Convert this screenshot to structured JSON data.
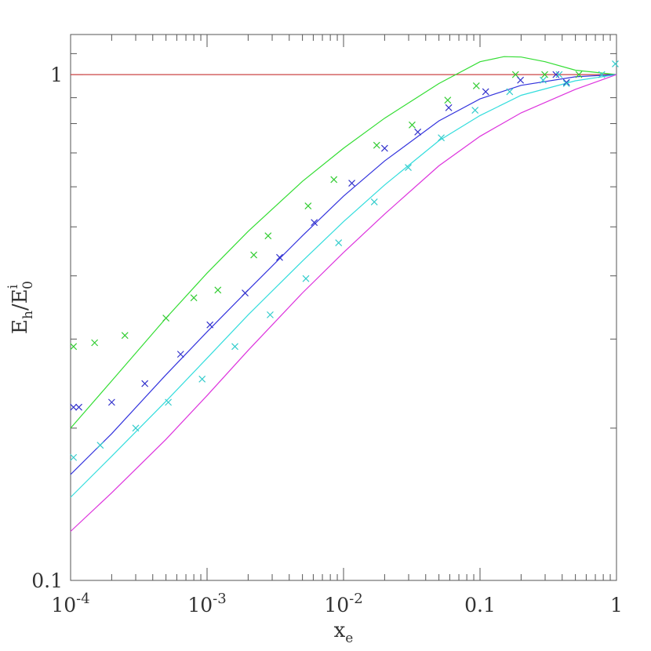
{
  "chart_data": {
    "type": "line",
    "xlabel": {
      "main": "x",
      "sub": "e"
    },
    "ylabel": {
      "main": "E",
      "sub": "h",
      "slash": "/",
      "main2": "E",
      "sup2": "i",
      "sub2": "0"
    },
    "xscale": "log",
    "yscale": "log",
    "xlim": [
      0.0001,
      1
    ],
    "ylim": [
      0.1,
      1.2
    ],
    "x_ticks": [
      {
        "value": 0.0001,
        "base": "10",
        "exp": "-4"
      },
      {
        "value": 0.001,
        "base": "10",
        "exp": "-3"
      },
      {
        "value": 0.01,
        "base": "10",
        "exp": "-2"
      },
      {
        "value": 0.1,
        "text": "0.1"
      },
      {
        "value": 1,
        "text": "1"
      }
    ],
    "y_ticks": [
      {
        "value": 0.1,
        "text": "0.1"
      },
      {
        "value": 1,
        "text": "1"
      }
    ],
    "grid": false,
    "legend": "none",
    "series": [
      {
        "kind": "line",
        "color": "#cc4444",
        "points": [
          [
            0.0001,
            1.0
          ],
          [
            1,
            1.0
          ]
        ]
      },
      {
        "kind": "line",
        "color": "#33dd33",
        "points": [
          [
            0.0001,
            0.2
          ],
          [
            0.0002,
            0.248
          ],
          [
            0.0005,
            0.33
          ],
          [
            0.001,
            0.405
          ],
          [
            0.002,
            0.49
          ],
          [
            0.005,
            0.615
          ],
          [
            0.01,
            0.715
          ],
          [
            0.02,
            0.82
          ],
          [
            0.05,
            0.96
          ],
          [
            0.1,
            1.06
          ],
          [
            0.15,
            1.085
          ],
          [
            0.2,
            1.083
          ],
          [
            0.3,
            1.06
          ],
          [
            0.5,
            1.02
          ],
          [
            1,
            1.0
          ]
        ]
      },
      {
        "kind": "line",
        "color": "#3333dd",
        "points": [
          [
            0.0001,
            0.162
          ],
          [
            0.0002,
            0.195
          ],
          [
            0.0005,
            0.255
          ],
          [
            0.001,
            0.31
          ],
          [
            0.002,
            0.375
          ],
          [
            0.005,
            0.48
          ],
          [
            0.01,
            0.575
          ],
          [
            0.02,
            0.675
          ],
          [
            0.05,
            0.81
          ],
          [
            0.1,
            0.895
          ],
          [
            0.2,
            0.952
          ],
          [
            0.5,
            0.99
          ],
          [
            1,
            1.0
          ]
        ]
      },
      {
        "kind": "line",
        "color": "#33dddd",
        "points": [
          [
            0.0001,
            0.146
          ],
          [
            0.0002,
            0.176
          ],
          [
            0.0005,
            0.226
          ],
          [
            0.001,
            0.275
          ],
          [
            0.002,
            0.335
          ],
          [
            0.005,
            0.428
          ],
          [
            0.01,
            0.512
          ],
          [
            0.02,
            0.605
          ],
          [
            0.05,
            0.74
          ],
          [
            0.1,
            0.83
          ],
          [
            0.2,
            0.91
          ],
          [
            0.5,
            0.972
          ],
          [
            1,
            1.0
          ]
        ]
      },
      {
        "kind": "line",
        "color": "#dd33dd",
        "points": [
          [
            0.0001,
            0.125
          ],
          [
            0.0002,
            0.149
          ],
          [
            0.0005,
            0.19
          ],
          [
            0.001,
            0.232
          ],
          [
            0.002,
            0.285
          ],
          [
            0.005,
            0.37
          ],
          [
            0.01,
            0.445
          ],
          [
            0.02,
            0.53
          ],
          [
            0.05,
            0.66
          ],
          [
            0.1,
            0.755
          ],
          [
            0.2,
            0.84
          ],
          [
            0.5,
            0.935
          ],
          [
            1,
            1.0
          ]
        ]
      },
      {
        "kind": "markers",
        "color": "#33cc33",
        "points": [
          [
            0.000105,
            0.29
          ],
          [
            0.00015,
            0.295
          ],
          [
            0.00025,
            0.305
          ],
          [
            0.0005,
            0.33
          ],
          [
            0.0008,
            0.362
          ],
          [
            0.0012,
            0.375
          ],
          [
            0.0022,
            0.44
          ],
          [
            0.0028,
            0.48
          ],
          [
            0.0055,
            0.55
          ],
          [
            0.0085,
            0.62
          ],
          [
            0.0175,
            0.725
          ],
          [
            0.0318,
            0.795
          ],
          [
            0.058,
            0.89
          ],
          [
            0.094,
            0.95
          ],
          [
            0.182,
            1.0
          ],
          [
            0.298,
            1.0
          ],
          [
            0.53,
            1.0
          ]
        ]
      },
      {
        "kind": "markers",
        "color": "#3333cc",
        "points": [
          [
            0.000105,
            0.22
          ],
          [
            0.000115,
            0.22
          ],
          [
            0.0002,
            0.225
          ],
          [
            0.00035,
            0.245
          ],
          [
            0.00064,
            0.28
          ],
          [
            0.00105,
            0.32
          ],
          [
            0.0019,
            0.37
          ],
          [
            0.0034,
            0.435
          ],
          [
            0.0061,
            0.51
          ],
          [
            0.0115,
            0.61
          ],
          [
            0.02,
            0.715
          ],
          [
            0.035,
            0.77
          ],
          [
            0.059,
            0.86
          ],
          [
            0.11,
            0.925
          ],
          [
            0.198,
            0.975
          ],
          [
            0.36,
            1.0
          ],
          [
            0.43,
            0.965
          ]
        ]
      },
      {
        "kind": "markers",
        "color": "#33cccc",
        "points": [
          [
            0.000105,
            0.175
          ],
          [
            0.000165,
            0.185
          ],
          [
            0.0003,
            0.2
          ],
          [
            0.00052,
            0.225
          ],
          [
            0.00092,
            0.25
          ],
          [
            0.0016,
            0.29
          ],
          [
            0.0029,
            0.335
          ],
          [
            0.0053,
            0.395
          ],
          [
            0.0092,
            0.465
          ],
          [
            0.0168,
            0.56
          ],
          [
            0.0298,
            0.655
          ],
          [
            0.052,
            0.75
          ],
          [
            0.092,
            0.85
          ],
          [
            0.165,
            0.925
          ],
          [
            0.29,
            0.975
          ],
          [
            0.38,
            1.0
          ],
          [
            0.43,
            0.96
          ],
          [
            0.78,
            1.0
          ],
          [
            0.98,
            1.05
          ]
        ]
      }
    ]
  }
}
